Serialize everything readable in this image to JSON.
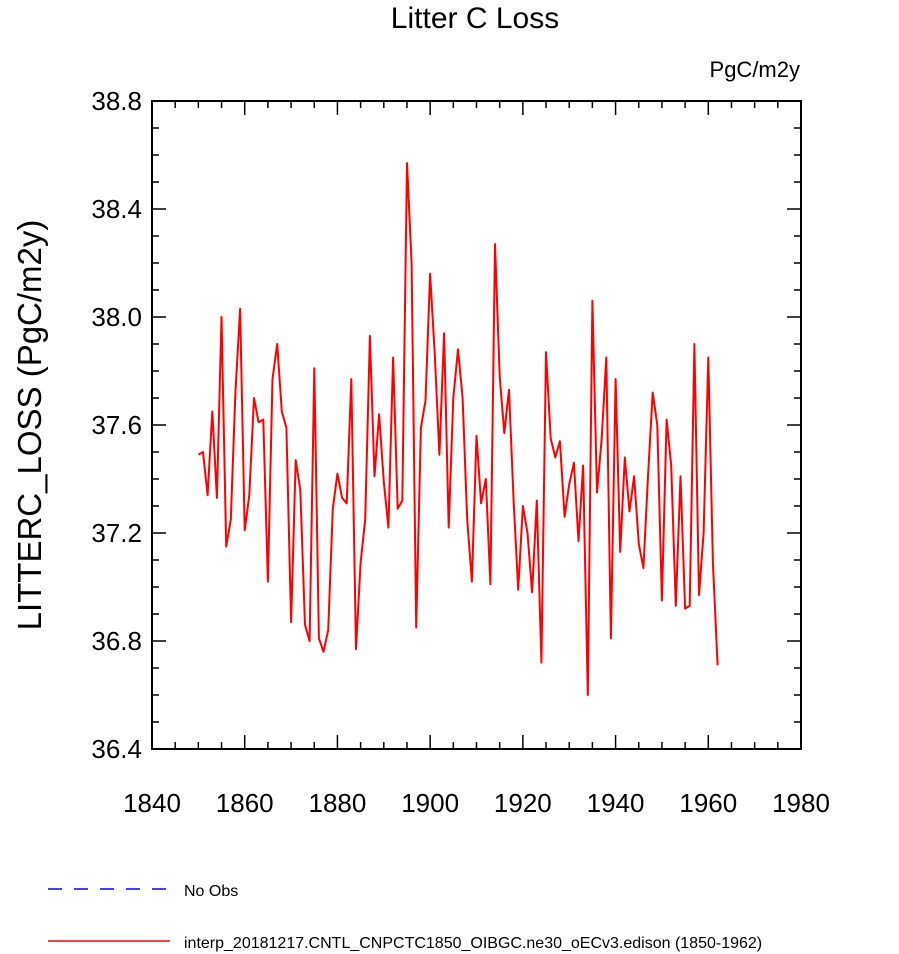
{
  "chart_data": {
    "type": "line",
    "title": "Litter C Loss",
    "units_label": "PgC/m2y",
    "ylabel": "LITTERC_LOSS  (PgC/m2y)",
    "xlabel": "",
    "xlim": [
      1840,
      1980
    ],
    "ylim": [
      36.4,
      38.8
    ],
    "x_ticks": [
      1840,
      1860,
      1880,
      1900,
      1920,
      1940,
      1960,
      1980
    ],
    "y_ticks": [
      36.4,
      36.8,
      37.2,
      37.6,
      38.0,
      38.4,
      38.8
    ],
    "y_tick_labels": [
      "36.4",
      "36.8",
      "37.2",
      "37.6",
      "38.0",
      "38.4",
      "38.8"
    ],
    "series": [
      {
        "name": "interp_20181217.CNTL_CNPCTC1850_OIBGC.ne30_oECv3.edison (1850-1962)",
        "color": "#ff0000",
        "x": [
          1850,
          1851,
          1852,
          1853,
          1854,
          1855,
          1856,
          1857,
          1858,
          1859,
          1860,
          1861,
          1862,
          1863,
          1864,
          1865,
          1866,
          1867,
          1868,
          1869,
          1870,
          1871,
          1872,
          1873,
          1874,
          1875,
          1876,
          1877,
          1878,
          1879,
          1880,
          1881,
          1882,
          1883,
          1884,
          1885,
          1886,
          1887,
          1888,
          1889,
          1890,
          1891,
          1892,
          1893,
          1894,
          1895,
          1896,
          1897,
          1898,
          1899,
          1900,
          1901,
          1902,
          1903,
          1904,
          1905,
          1906,
          1907,
          1908,
          1909,
          1910,
          1911,
          1912,
          1913,
          1914,
          1915,
          1916,
          1917,
          1918,
          1919,
          1920,
          1921,
          1922,
          1923,
          1924,
          1925,
          1926,
          1927,
          1928,
          1929,
          1930,
          1931,
          1932,
          1933,
          1934,
          1935,
          1936,
          1937,
          1938,
          1939,
          1940,
          1941,
          1942,
          1943,
          1944,
          1945,
          1946,
          1947,
          1948,
          1949,
          1950,
          1951,
          1952,
          1953,
          1954,
          1955,
          1956,
          1957,
          1958,
          1959,
          1960,
          1961,
          1962
        ],
        "values": [
          37.49,
          37.5,
          37.34,
          37.65,
          37.33,
          38.0,
          37.15,
          37.25,
          37.72,
          38.03,
          37.21,
          37.34,
          37.7,
          37.61,
          37.62,
          37.02,
          37.77,
          37.9,
          37.65,
          37.59,
          36.87,
          37.47,
          37.36,
          36.86,
          36.8,
          37.81,
          36.81,
          36.76,
          36.84,
          37.29,
          37.42,
          37.33,
          37.31,
          37.77,
          36.77,
          37.09,
          37.25,
          37.93,
          37.41,
          37.64,
          37.39,
          37.22,
          37.85,
          37.29,
          37.32,
          38.57,
          38.2,
          36.85,
          37.59,
          37.69,
          38.16,
          37.86,
          37.49,
          37.94,
          37.22,
          37.7,
          37.88,
          37.7,
          37.25,
          37.02,
          37.56,
          37.31,
          37.4,
          37.01,
          38.27,
          37.78,
          37.57,
          37.73,
          37.32,
          36.99,
          37.3,
          37.2,
          36.98,
          37.32,
          36.72,
          37.87,
          37.55,
          37.48,
          37.54,
          37.26,
          37.38,
          37.46,
          37.17,
          37.45,
          36.6,
          38.06,
          37.35,
          37.55,
          37.85,
          36.81,
          37.77,
          37.13,
          37.48,
          37.28,
          37.41,
          37.16,
          37.07,
          37.41,
          37.72,
          37.6,
          36.95,
          37.62,
          37.45,
          36.93,
          37.41,
          36.92,
          36.93,
          37.9,
          36.97,
          37.2,
          37.85,
          37.09,
          36.71
        ]
      }
    ]
  },
  "legend": {
    "items": [
      {
        "label": "No Obs",
        "color": "#0000ff",
        "style": "dashed"
      },
      {
        "label": "interp_20181217.CNTL_CNPCTC1850_OIBGC.ne30_oECv3.edison (1850-1962)",
        "color": "#ff0000",
        "style": "solid"
      }
    ]
  }
}
